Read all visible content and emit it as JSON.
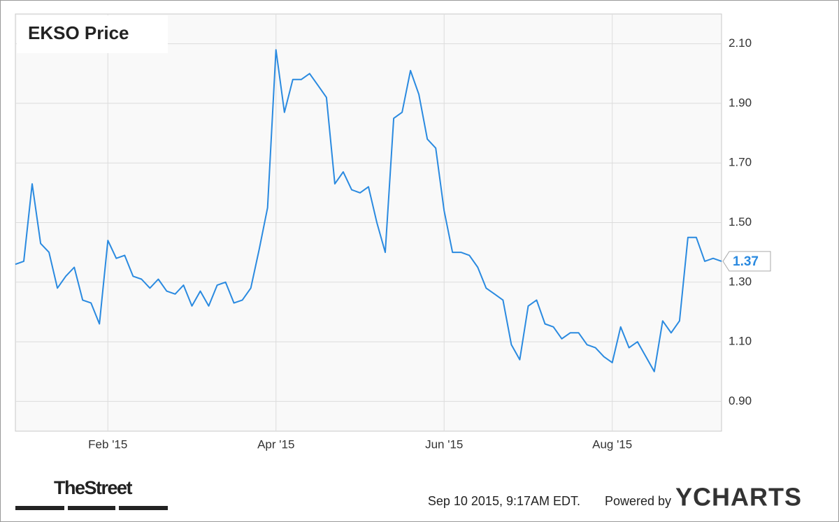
{
  "chart_data": {
    "type": "line",
    "title": "EKSO Price",
    "categories": [
      null,
      null,
      null,
      null,
      null,
      null,
      null,
      null,
      null,
      null,
      null,
      "Feb '15",
      null,
      null,
      null,
      null,
      null,
      null,
      null,
      null,
      null,
      null,
      null,
      null,
      null,
      null,
      null,
      null,
      null,
      null,
      null,
      "Apr '15",
      null,
      null,
      null,
      null,
      null,
      null,
      null,
      null,
      null,
      null,
      null,
      null,
      null,
      null,
      null,
      null,
      null,
      null,
      null,
      "Jun '15",
      null,
      null,
      null,
      null,
      null,
      null,
      null,
      null,
      null,
      null,
      null,
      null,
      null,
      null,
      null,
      null,
      null,
      null,
      null,
      "Aug '15",
      null,
      null,
      null,
      null,
      null,
      null,
      null,
      null,
      null,
      null,
      null,
      null,
      null
    ],
    "values": [
      1.36,
      1.37,
      1.63,
      1.43,
      1.4,
      1.28,
      1.32,
      1.35,
      1.24,
      1.23,
      1.16,
      1.44,
      1.38,
      1.39,
      1.32,
      1.31,
      1.28,
      1.31,
      1.27,
      1.26,
      1.29,
      1.22,
      1.27,
      1.22,
      1.29,
      1.3,
      1.23,
      1.24,
      1.28,
      1.41,
      1.55,
      2.08,
      1.87,
      1.98,
      1.98,
      2.0,
      1.96,
      1.92,
      1.63,
      1.67,
      1.61,
      1.6,
      1.62,
      1.5,
      1.4,
      1.85,
      1.87,
      2.01,
      1.93,
      1.78,
      1.75,
      1.54,
      1.4,
      1.4,
      1.39,
      1.35,
      1.28,
      1.26,
      1.24,
      1.09,
      1.04,
      1.22,
      1.24,
      1.16,
      1.15,
      1.11,
      1.13,
      1.13,
      1.09,
      1.08,
      1.05,
      1.03,
      1.15,
      1.08,
      1.1,
      1.05,
      1.0,
      1.17,
      1.13,
      1.17,
      1.45,
      1.45,
      1.37,
      1.38,
      1.37
    ],
    "color": "#2a8ae0",
    "ylim": [
      0.8,
      2.2
    ],
    "yticks": [
      {
        "value": 0.9,
        "label": "0.90"
      },
      {
        "value": 1.1,
        "label": "1.10"
      },
      {
        "value": 1.3,
        "label": "1.30"
      },
      {
        "value": 1.5,
        "label": "1.50"
      },
      {
        "value": 1.7,
        "label": "1.70"
      },
      {
        "value": 1.9,
        "label": "1.90"
      },
      {
        "value": 2.1,
        "label": "2.10"
      }
    ],
    "grid": true,
    "source": "Sep 10 2015, 9:17AM EDT.",
    "credit": "Powered by",
    "brand": "YCHARTS",
    "publisher": "TheStreet"
  }
}
